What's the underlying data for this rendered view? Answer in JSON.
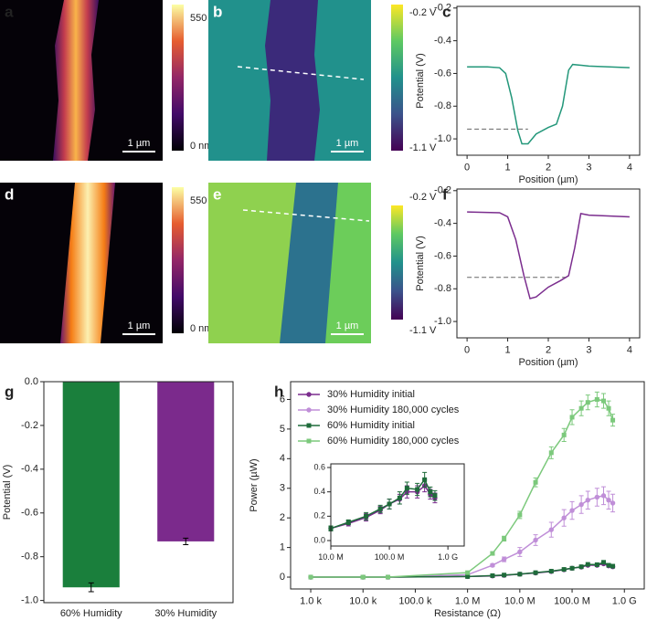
{
  "panel_labels": [
    "a",
    "b",
    "c",
    "d",
    "e",
    "f",
    "g",
    "h"
  ],
  "images": [
    {
      "cbar_max": "550 nm",
      "cbar_min": "0 nm",
      "scale_bar": "1 µm"
    },
    {
      "cbar_max": "-0.2 V",
      "cbar_min": "-1.1 V",
      "scale_bar": "1 µm"
    },
    {
      "cbar_max": "550 nm",
      "cbar_min": "0 nm",
      "scale_bar": "1 µm"
    },
    {
      "cbar_max": "-0.2 V",
      "cbar_min": "-1.1 V",
      "scale_bar": "1 µm"
    }
  ],
  "chart_data": [
    {
      "type": "line",
      "xlabel": "Position (µm)",
      "ylabel": "Potential (V)",
      "x": [
        0,
        0.5,
        0.8,
        0.95,
        1.1,
        1.25,
        1.35,
        1.5,
        1.7,
        2.0,
        2.2,
        2.35,
        2.5,
        2.6,
        3.0,
        3.5,
        4.0
      ],
      "series": [
        {
          "color": "#23977a",
          "values": [
            -0.56,
            -0.56,
            -0.565,
            -0.6,
            -0.75,
            -0.95,
            -1.03,
            -1.03,
            -0.97,
            -0.93,
            -0.91,
            -0.8,
            -0.58,
            -0.545,
            -0.555,
            -0.56,
            -0.565
          ]
        }
      ],
      "hline": {
        "value": -0.94,
        "x": [
          0,
          1.5
        ]
      },
      "xlim": [
        -0.25,
        4.25
      ],
      "ylim": [
        -1.1,
        -0.19
      ],
      "xticks": [
        0,
        1,
        2,
        3,
        4
      ],
      "yticks": [
        -0.2,
        -0.4,
        -0.6,
        -0.8,
        {
          "value": -1,
          "label": "-1.0"
        }
      ]
    },
    {
      "type": "line",
      "xlabel": "Position (µm)",
      "ylabel": "Potential (V)",
      "x": [
        0,
        0.8,
        1.0,
        1.2,
        1.4,
        1.55,
        1.7,
        2.0,
        2.3,
        2.5,
        2.65,
        2.8,
        3.0,
        4.0
      ],
      "series": [
        {
          "color": "#7b2d8e",
          "values": [
            -0.33,
            -0.335,
            -0.36,
            -0.5,
            -0.72,
            -0.86,
            -0.85,
            -0.79,
            -0.75,
            -0.72,
            -0.55,
            -0.34,
            -0.35,
            -0.36
          ]
        }
      ],
      "hline": {
        "value": -0.73,
        "x": [
          0,
          2.5
        ]
      },
      "xlim": [
        -0.25,
        4.25
      ],
      "ylim": [
        -1.1,
        -0.19
      ],
      "xticks": [
        0,
        1,
        2,
        3,
        4
      ],
      "yticks": [
        -0.2,
        -0.4,
        -0.6,
        -0.8,
        {
          "value": -1,
          "label": "-1.0"
        }
      ]
    },
    {
      "type": "bar",
      "ylabel": "Potential (V)",
      "categories": [
        "60% Humidity",
        "30% Humidity"
      ],
      "values": [
        -0.94,
        -0.73
      ],
      "errors": [
        0.02,
        0.015
      ],
      "colors": [
        "#1a7f3c",
        "#7b2a8c"
      ],
      "ylim": [
        -1.01,
        0
      ],
      "yticks": [
        {
          "value": 0,
          "label": "0.0"
        },
        -0.2,
        -0.4,
        -0.6,
        -0.8,
        {
          "value": -1,
          "label": "-1.0"
        }
      ]
    },
    {
      "type": "line",
      "xlabel": "Resistance (Ω)",
      "ylabel": "Power (µW)",
      "xscale": "log",
      "legend": "upper left",
      "x": [
        1000,
        10000,
        30000,
        1000000,
        3000000,
        5000000,
        10000000,
        20000000,
        40000000,
        70000000,
        100000000,
        150000000,
        200000000,
        300000000,
        400000000,
        500000000,
        600000000
      ],
      "series": [
        {
          "name": "30% Humidity initial",
          "color": "#7b2d8e",
          "marker": "circle",
          "values": [
            0,
            0,
            0,
            0.02,
            0.04,
            0.06,
            0.1,
            0.14,
            0.19,
            0.25,
            0.3,
            0.34,
            0.4,
            0.4,
            0.45,
            0.38,
            0.35
          ]
        },
        {
          "name": "30% Humidity 180,000 cycles",
          "color": "#c08fd8",
          "marker": "circle",
          "values": [
            0,
            0,
            0,
            0.08,
            0.4,
            0.6,
            0.85,
            1.25,
            1.6,
            2.0,
            2.25,
            2.45,
            2.6,
            2.7,
            2.75,
            2.6,
            2.5
          ],
          "errors": [
            0,
            0,
            0,
            0.03,
            0.05,
            0.08,
            0.15,
            0.18,
            0.25,
            0.28,
            0.3,
            0.3,
            0.3,
            0.3,
            0.3,
            0.3,
            0.3
          ]
        },
        {
          "name": "60% Humidity initial",
          "color": "#1e6b3a",
          "marker": "square",
          "values": [
            0,
            0,
            0,
            0.02,
            0.05,
            0.07,
            0.1,
            0.15,
            0.2,
            0.26,
            0.3,
            0.35,
            0.43,
            0.42,
            0.5,
            0.4,
            0.37
          ]
        },
        {
          "name": "60% Humidity 180,000 cycles",
          "color": "#7cc97c",
          "marker": "square",
          "values": [
            0,
            0,
            0,
            0.15,
            0.8,
            1.3,
            2.1,
            3.2,
            4.2,
            4.8,
            5.4,
            5.7,
            5.9,
            6.0,
            5.95,
            5.7,
            5.3
          ],
          "errors": [
            0,
            0,
            0,
            0.03,
            0.05,
            0.08,
            0.12,
            0.15,
            0.2,
            0.22,
            0.25,
            0.25,
            0.25,
            0.25,
            0.25,
            0.25,
            0.2
          ]
        }
      ],
      "xlim": [
        412,
        2400000000
      ],
      "ylim": [
        -0.4,
        6.6
      ],
      "xticks": [
        {
          "value": 1000,
          "label": "1.0 k"
        },
        {
          "value": 10000,
          "label": "10.0 k"
        },
        {
          "value": 100000,
          "label": "100.0 k"
        },
        {
          "value": 1000000,
          "label": "1.0 M"
        },
        {
          "value": 10000000,
          "label": "10.0 M"
        },
        {
          "value": 100000000,
          "label": "100.0 M"
        },
        {
          "value": 1000000000,
          "label": "1.0 G"
        }
      ],
      "yticks": [
        0,
        1,
        2,
        3,
        4,
        5,
        6
      ]
    },
    {
      "type": "line",
      "xscale": "log",
      "x": [
        10000000,
        20000000,
        40000000,
        70000000,
        100000000,
        150000000,
        200000000,
        300000000,
        400000000,
        500000000,
        600000000
      ],
      "series": [
        {
          "color": "#7b2d8e",
          "marker": "circle",
          "values": [
            0.1,
            0.14,
            0.19,
            0.25,
            0.3,
            0.34,
            0.4,
            0.4,
            0.45,
            0.38,
            0.35
          ],
          "errors": [
            0.02,
            0.02,
            0.03,
            0.03,
            0.04,
            0.04,
            0.05,
            0.05,
            0.05,
            0.04,
            0.04
          ]
        },
        {
          "color": "#1e6b3a",
          "marker": "square",
          "values": [
            0.1,
            0.15,
            0.2,
            0.26,
            0.3,
            0.35,
            0.43,
            0.42,
            0.5,
            0.4,
            0.37
          ],
          "errors": [
            0.02,
            0.02,
            0.03,
            0.03,
            0.04,
            0.05,
            0.05,
            0.05,
            0.06,
            0.04,
            0.04
          ]
        }
      ],
      "xlim": [
        10000000,
        1900000000
      ],
      "ylim": [
        -0.045,
        0.63
      ],
      "xticks": [
        {
          "value": 10000000,
          "label": "10.0 M"
        },
        {
          "value": 100000000,
          "label": "100.0 M"
        },
        {
          "value": 1000000000,
          "label": "1.0 G"
        }
      ],
      "yticks": [
        {
          "value": 0,
          "label": "0.0"
        },
        0.2,
        0.4,
        0.6
      ]
    }
  ]
}
